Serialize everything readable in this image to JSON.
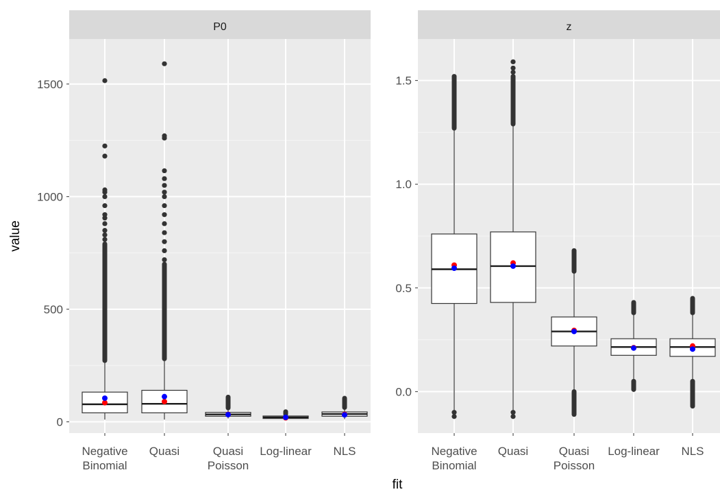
{
  "chart_data": {
    "type": "boxplot",
    "xlabel": "fit",
    "ylabel": "value",
    "categories": [
      "Negative Binomial",
      "Quasi",
      "Quasi Poisson",
      "Log-linear",
      "NLS"
    ],
    "category_labels": [
      [
        "Negative",
        "Binomial"
      ],
      [
        "Quasi"
      ],
      [
        "Quasi",
        "Poisson"
      ],
      [
        "Log-linear"
      ],
      [
        "NLS"
      ]
    ],
    "grid": true,
    "marker_colors": {
      "red_point": "#ff0000",
      "blue_point": "#0000ff"
    },
    "facets": [
      {
        "title": "P0",
        "ylim": [
          -50,
          1700
        ],
        "yticks": [
          0,
          500,
          1000,
          1500
        ],
        "ytick_labels": [
          "0",
          "500",
          "1000",
          "1500"
        ],
        "boxes": [
          {
            "category": "Negative Binomial",
            "q1": 40,
            "median": 78,
            "q3": 132,
            "whisker_low": 10,
            "whisker_high": 272,
            "outlier_range": [
              272,
              790
            ],
            "outliers": [
              810,
              830,
              850,
              880,
              905,
              920,
              960,
              1000,
              1020,
              1030,
              1180,
              1225,
              1515
            ],
            "red_point": 85,
            "blue_point": 105
          },
          {
            "category": "Quasi",
            "q1": 40,
            "median": 80,
            "q3": 140,
            "whisker_low": 10,
            "whisker_high": 280,
            "outlier_range": [
              280,
              700
            ],
            "outliers": [
              720,
              760,
              800,
              840,
              880,
              920,
              960,
              1000,
              1020,
              1050,
              1080,
              1115,
              1260,
              1270,
              1590
            ],
            "red_point": 90,
            "blue_point": 112
          },
          {
            "category": "Quasi Poisson",
            "q1": 25,
            "median": 33,
            "q3": 42,
            "whisker_low": 15,
            "whisker_high": 60,
            "outlier_range": [
              62,
              110
            ],
            "outliers": [],
            "red_point": 33,
            "blue_point": 32
          },
          {
            "category": "Log-linear",
            "q1": 15,
            "median": 20,
            "q3": 26,
            "whisker_low": 8,
            "whisker_high": 32,
            "outlier_range": [
              34,
              45
            ],
            "outliers": [],
            "red_point": 18,
            "blue_point": 20
          },
          {
            "category": "NLS",
            "q1": 25,
            "median": 35,
            "q3": 44,
            "whisker_low": 12,
            "whisker_high": 62,
            "outlier_range": [
              64,
              105
            ],
            "outliers": [],
            "red_point": 33,
            "blue_point": 31
          }
        ]
      },
      {
        "title": "z",
        "ylim": [
          -0.2,
          1.7
        ],
        "yticks": [
          0.0,
          0.5,
          1.0,
          1.5
        ],
        "ytick_labels": [
          "0.0",
          "0.5",
          "1.0",
          "1.5"
        ],
        "boxes": [
          {
            "category": "Negative Binomial",
            "q1": 0.425,
            "median": 0.59,
            "q3": 0.76,
            "whisker_low": -0.09,
            "whisker_high": 1.26,
            "outlier_range": [
              1.27,
              1.52
            ],
            "outliers": [
              -0.1,
              -0.12
            ],
            "red_point": 0.61,
            "blue_point": 0.595
          },
          {
            "category": "Quasi",
            "q1": 0.43,
            "median": 0.605,
            "q3": 0.77,
            "whisker_low": -0.09,
            "whisker_high": 1.28,
            "outlier_range": [
              1.29,
              1.52
            ],
            "outliers": [
              -0.1,
              -0.12,
              1.54,
              1.56,
              1.59
            ],
            "red_point": 0.62,
            "blue_point": 0.605
          },
          {
            "category": "Quasi Poisson",
            "q1": 0.22,
            "median": 0.29,
            "q3": 0.36,
            "whisker_low": 0.01,
            "whisker_high": 0.57,
            "outlier_range": [
              0.58,
              0.68
            ],
            "outliers": [],
            "outlier_range_low": [
              -0.11,
              0.0
            ],
            "red_point": 0.295,
            "blue_point": 0.29
          },
          {
            "category": "Log-linear",
            "q1": 0.175,
            "median": 0.215,
            "q3": 0.255,
            "whisker_low": 0.06,
            "whisker_high": 0.375,
            "outlier_range": [
              0.38,
              0.43
            ],
            "outliers": [],
            "outlier_range_low": [
              0.01,
              0.05
            ],
            "red_point": 0.212,
            "blue_point": 0.21
          },
          {
            "category": "NLS",
            "q1": 0.17,
            "median": 0.215,
            "q3": 0.255,
            "whisker_low": 0.055,
            "whisker_high": 0.375,
            "outlier_range": [
              0.38,
              0.45
            ],
            "outliers": [],
            "outlier_range_low": [
              -0.07,
              0.05
            ],
            "red_point": 0.22,
            "blue_point": 0.205
          }
        ]
      }
    ]
  }
}
